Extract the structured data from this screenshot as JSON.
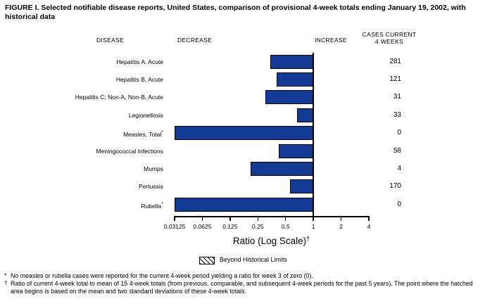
{
  "title": "FIGURE I. Selected notifiable disease reports, United States, comparison of provisional 4-week totals ending January 19, 2002, with historical data",
  "columns": {
    "disease": "DISEASE",
    "decrease": "DECREASE",
    "increase": "INCREASE",
    "cases_line1": "CASES CURRENT",
    "cases_line2": "4 WEEKS"
  },
  "chart_data": {
    "type": "bar",
    "orientation": "horizontal",
    "xscale": "log2",
    "xlabel": "Ratio (Log Scale)",
    "xlabel_flag": "†",
    "xlim": [
      0.03125,
      4
    ],
    "baseline_value": 1,
    "xticks": [
      0.03125,
      0.0625,
      0.125,
      0.25,
      0.5,
      1,
      2,
      4
    ],
    "xtick_labels": [
      "0.03125",
      "0.0625",
      "0.125",
      "0.25",
      "0.5",
      "1",
      "2",
      "4"
    ],
    "bar_color": "#133a94",
    "axis_color": "#000000",
    "legend": {
      "swatch": "hatched",
      "label": "Beyond Historical Limits"
    },
    "rows": [
      {
        "disease": "Hepatitis A, Acute",
        "flag": "",
        "ratio": 0.34,
        "cases": "281"
      },
      {
        "disease": "Hepatitis B, Acute",
        "flag": "",
        "ratio": 0.4,
        "cases": "121"
      },
      {
        "disease": "Hepatitis C; Non-A, Non-B, Acute",
        "flag": "",
        "ratio": 0.3,
        "cases": "31"
      },
      {
        "disease": "Legionellosis",
        "flag": "",
        "ratio": 0.67,
        "cases": "33"
      },
      {
        "disease": "Measles, Total",
        "flag": "*",
        "ratio": 0,
        "cases": "0"
      },
      {
        "disease": "Meningococcal Infections",
        "flag": "",
        "ratio": 0.42,
        "cases": "58"
      },
      {
        "disease": "Mumps",
        "flag": "",
        "ratio": 0.21,
        "cases": "4"
      },
      {
        "disease": "Pertussis",
        "flag": "",
        "ratio": 0.56,
        "cases": "170"
      },
      {
        "disease": "Rubella",
        "flag": "*",
        "ratio": 0,
        "cases": "0"
      }
    ]
  },
  "footnotes": [
    {
      "marker": "*",
      "text": "No measles or rubella cases were reported for the current 4-week period yielding a ratio for week 3 of zero (0)."
    },
    {
      "marker": "†",
      "text": "Ratio of current 4-week total to mean of 15 4-week totals (from previous, comparable, and subsequent 4-week periods for the past 5 years). The point where the hatched area begins is based on the mean and two standard deviations of these 4-week totals."
    }
  ]
}
